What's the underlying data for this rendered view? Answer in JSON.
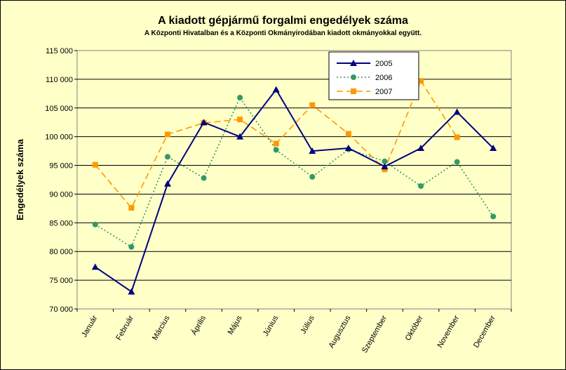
{
  "chart_data": {
    "type": "line",
    "title": "A  kiadott gépjármű forgalmi engedélyek száma",
    "subtitle": "A  Központi Hivatalban és a Központi Okmányirodában kiadott okmányokkal együtt.",
    "xlabel": "",
    "ylabel": "Engedélyek száma",
    "ylim": [
      70000,
      115000
    ],
    "yticks": [
      "70 000",
      "75 000",
      "80 000",
      "85 000",
      "90 000",
      "95 000",
      "100 000",
      "105 000",
      "110 000",
      "115 000"
    ],
    "categories": [
      "Január",
      "Február",
      "Március",
      "Április",
      "Május",
      "Június",
      "Július",
      "Augusztus",
      "Szeptember",
      "Október",
      "November",
      "December"
    ],
    "grid": true,
    "legend_position": "top-right",
    "series": [
      {
        "name": "2005",
        "color": "#000080",
        "marker": "triangle",
        "dash": "solid",
        "values": [
          77300,
          73000,
          91800,
          102500,
          100000,
          108200,
          97500,
          98000,
          94800,
          98000,
          104300,
          98000
        ]
      },
      {
        "name": "2006",
        "color": "#339966",
        "marker": "circle",
        "dash": "dotted",
        "values": [
          84700,
          80800,
          96500,
          92800,
          106800,
          97700,
          93000,
          97800,
          95700,
          91400,
          95600,
          86100
        ]
      },
      {
        "name": "2007",
        "color": "#ff9900",
        "marker": "square",
        "dash": "dashed",
        "values": [
          95100,
          87600,
          100400,
          102400,
          103000,
          98800,
          105500,
          100500,
          94300,
          109700,
          99900,
          null
        ]
      }
    ]
  }
}
